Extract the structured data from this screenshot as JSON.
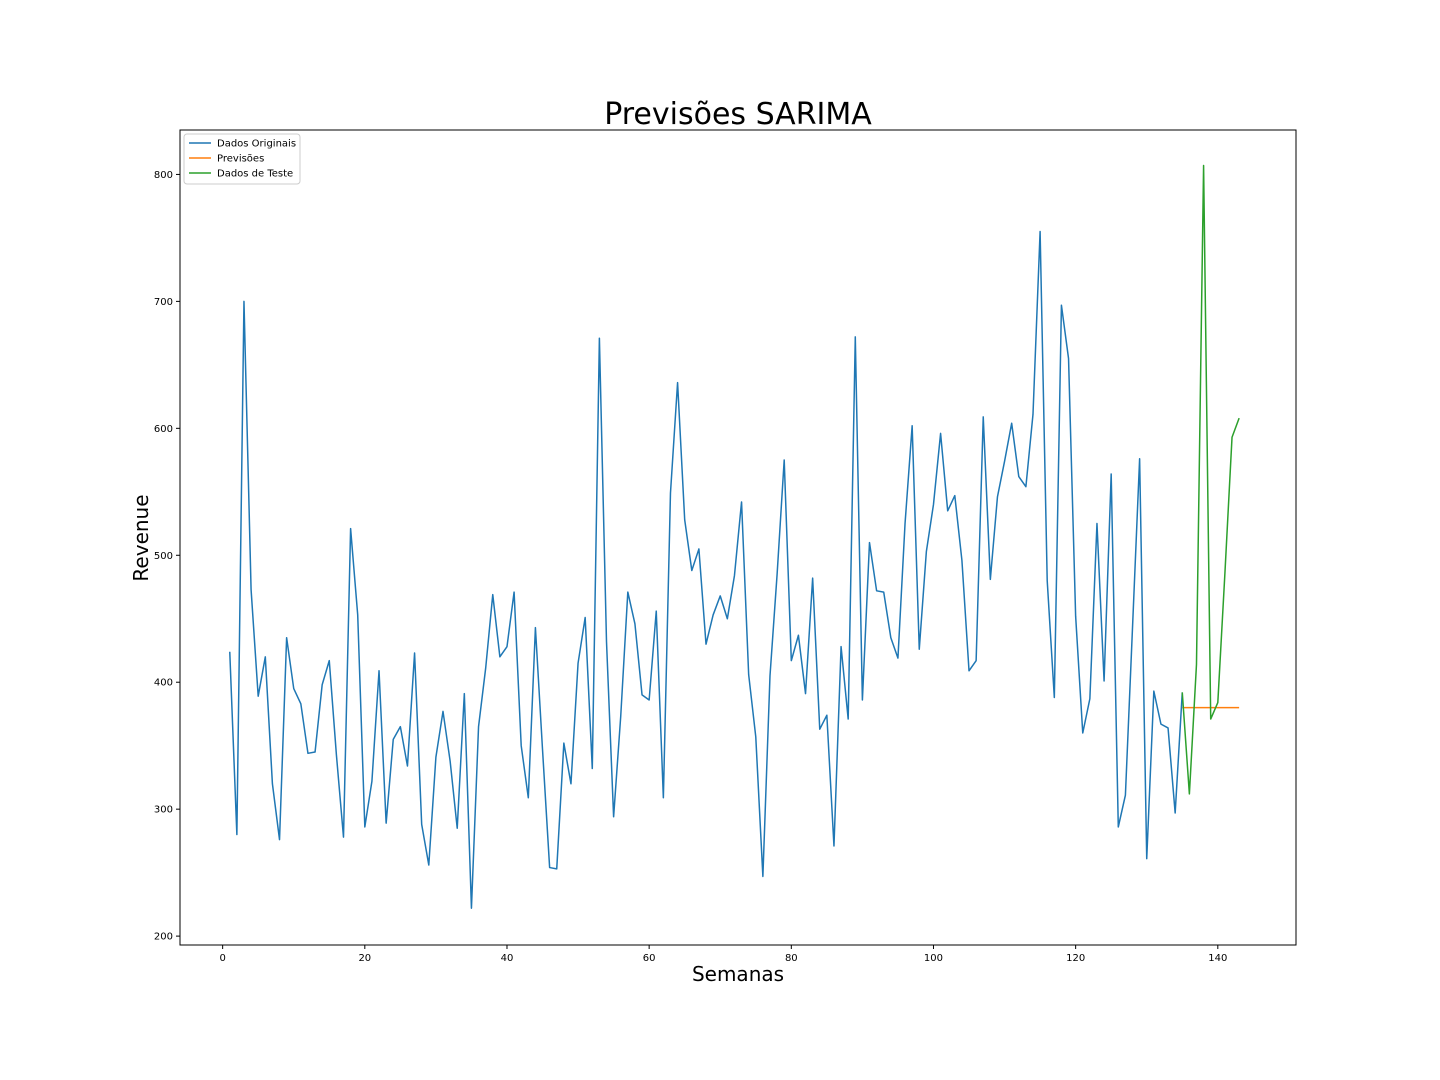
{
  "chart_data": {
    "type": "line",
    "title": "Previsões SARIMA",
    "xlabel": "Semanas",
    "ylabel": "Revenue",
    "xlim": [
      -6,
      151
    ],
    "ylim": [
      193,
      835
    ],
    "xticks": [
      0,
      20,
      40,
      60,
      80,
      100,
      120,
      140
    ],
    "yticks": [
      200,
      300,
      400,
      500,
      600,
      700,
      800
    ],
    "grid": false,
    "legend_position": "top-left",
    "series": [
      {
        "name": "Dados Originais",
        "color": "#1f77b4",
        "x": [
          1,
          2,
          3,
          4,
          5,
          6,
          7,
          8,
          9,
          10,
          11,
          12,
          13,
          14,
          15,
          16,
          17,
          18,
          19,
          20,
          21,
          22,
          23,
          24,
          25,
          26,
          27,
          28,
          29,
          30,
          31,
          32,
          33,
          34,
          35,
          36,
          37,
          38,
          39,
          40,
          41,
          42,
          43,
          44,
          45,
          46,
          47,
          48,
          49,
          50,
          51,
          52,
          53,
          54,
          55,
          56,
          57,
          58,
          59,
          60,
          61,
          62,
          63,
          64,
          65,
          66,
          67,
          68,
          69,
          70,
          71,
          72,
          73,
          74,
          75,
          76,
          77,
          78,
          79,
          80,
          81,
          82,
          83,
          84,
          85,
          86,
          87,
          88,
          89,
          90,
          91,
          92,
          93,
          94,
          95,
          96,
          97,
          98,
          99,
          100,
          101,
          102,
          103,
          104,
          105,
          106,
          107,
          108,
          109,
          110,
          111,
          112,
          113,
          114,
          115,
          116,
          117,
          118,
          119,
          120,
          121,
          122,
          123,
          124,
          125,
          126,
          127,
          128,
          129,
          130,
          131,
          132,
          133,
          134,
          135
        ],
        "values": [
          424,
          280,
          700,
          473,
          389,
          420,
          320,
          276,
          435,
          395,
          383,
          344,
          345,
          398,
          417,
          343,
          278,
          521,
          453,
          286,
          322,
          409,
          289,
          355,
          365,
          334,
          423,
          288,
          256,
          341,
          377,
          338,
          285,
          391,
          222,
          365,
          411,
          469,
          420,
          428,
          471,
          350,
          309,
          443,
          347,
          254,
          253,
          352,
          320,
          415,
          451,
          332,
          671,
          432,
          294,
          373,
          471,
          446,
          390,
          386,
          456,
          309,
          549,
          636,
          528,
          488,
          505,
          430,
          453,
          468,
          450,
          484,
          542,
          406,
          357,
          247,
          405,
          485,
          575,
          417,
          437,
          391,
          482,
          363,
          374,
          271,
          428,
          371,
          672,
          386,
          510,
          472,
          471,
          435,
          419,
          525,
          602,
          426,
          503,
          540,
          596,
          535,
          547,
          496,
          409,
          417,
          609,
          481,
          546,
          574,
          604,
          562,
          554,
          611,
          755,
          480,
          388,
          697,
          655,
          452,
          360,
          387,
          525,
          401,
          564,
          286,
          311,
          443,
          576,
          261,
          393,
          367,
          364,
          297,
          392
        ]
      },
      {
        "name": "Previsões",
        "color": "#ff7f0e",
        "x": [
          135,
          136,
          137,
          138,
          139,
          140,
          141,
          142,
          143
        ],
        "values": [
          380,
          380,
          380,
          380,
          380,
          380,
          380,
          380,
          380
        ]
      },
      {
        "name": "Dados de Teste",
        "color": "#2ca02c",
        "x": [
          135,
          136,
          137,
          138,
          139,
          140,
          141,
          142,
          143
        ],
        "values": [
          392,
          312,
          414,
          807,
          371,
          384,
          486,
          593,
          608
        ]
      }
    ]
  }
}
